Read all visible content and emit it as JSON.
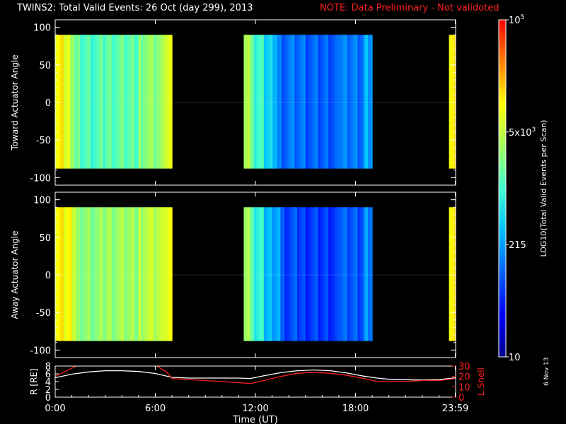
{
  "title": {
    "main": "TWINS2: Total Valid Events: 26 Oct (day 299), 2013",
    "note": "NOTE: Data Preliminary - Not validoted",
    "note_color": "#ff2020"
  },
  "datestamp": "6 Nov 13",
  "colorbar": {
    "ticks": [
      {
        "label": "10"
      },
      {
        "label": "215"
      },
      {
        "label": "5x10^3"
      },
      {
        "label": "10^5"
      }
    ],
    "label": "LOG10(Total Valid Events per Scan)",
    "colormap": [
      "#000090",
      "#0000ff",
      "#0060ff",
      "#00c0ff",
      "#40ffd0",
      "#a0ff60",
      "#ffff00",
      "#ff8000",
      "#ff0000"
    ]
  },
  "chart_data": [
    {
      "type": "heatmap",
      "ylabel": "Toward Actuator Angle",
      "ylim": [
        -110,
        110
      ],
      "yticks": [
        -100,
        -50,
        0,
        50,
        100
      ],
      "angle_range": [
        -88,
        90
      ],
      "x_range_hours": [
        0,
        24
      ],
      "data_segments_hours": [
        [
          0,
          7.0
        ],
        [
          11.3,
          19.0
        ],
        [
          23.6,
          24
        ]
      ],
      "column_profile": [
        {
          "start_h": 0.0,
          "end_h": 0.5,
          "level": 0.78
        },
        {
          "start_h": 0.5,
          "end_h": 0.9,
          "level": 0.7
        },
        {
          "start_h": 0.9,
          "end_h": 1.5,
          "level": 0.58
        },
        {
          "start_h": 1.5,
          "end_h": 3.0,
          "level": 0.52
        },
        {
          "start_h": 3.0,
          "end_h": 5.0,
          "level": 0.54
        },
        {
          "start_h": 5.0,
          "end_h": 6.5,
          "level": 0.6
        },
        {
          "start_h": 6.5,
          "end_h": 7.0,
          "level": 0.7
        },
        {
          "start_h": 11.3,
          "end_h": 11.8,
          "level": 0.62
        },
        {
          "start_h": 11.8,
          "end_h": 12.5,
          "level": 0.5
        },
        {
          "start_h": 12.5,
          "end_h": 13.3,
          "level": 0.4
        },
        {
          "start_h": 13.3,
          "end_h": 15.0,
          "level": 0.27
        },
        {
          "start_h": 15.0,
          "end_h": 17.0,
          "level": 0.25
        },
        {
          "start_h": 17.0,
          "end_h": 18.5,
          "level": 0.28
        },
        {
          "start_h": 18.5,
          "end_h": 19.0,
          "level": 0.34
        },
        {
          "start_h": 23.6,
          "end_h": 24.0,
          "level": 0.78
        }
      ]
    },
    {
      "type": "heatmap",
      "ylabel": "Away Actuator Angle",
      "ylim": [
        -110,
        110
      ],
      "yticks": [
        -100,
        -50,
        0,
        50,
        100
      ],
      "angle_range": [
        -88,
        90
      ],
      "x_range_hours": [
        0,
        24
      ],
      "data_segments_hours": [
        [
          0,
          7.0
        ],
        [
          11.3,
          19.0
        ],
        [
          23.6,
          24
        ]
      ],
      "column_profile": [
        {
          "start_h": 0.0,
          "end_h": 0.5,
          "level": 0.78
        },
        {
          "start_h": 0.5,
          "end_h": 1.0,
          "level": 0.72
        },
        {
          "start_h": 1.0,
          "end_h": 1.5,
          "level": 0.64
        },
        {
          "start_h": 1.5,
          "end_h": 3.0,
          "level": 0.6
        },
        {
          "start_h": 3.0,
          "end_h": 5.0,
          "level": 0.62
        },
        {
          "start_h": 5.0,
          "end_h": 6.5,
          "level": 0.66
        },
        {
          "start_h": 6.5,
          "end_h": 7.0,
          "level": 0.72
        },
        {
          "start_h": 11.3,
          "end_h": 11.8,
          "level": 0.6
        },
        {
          "start_h": 11.8,
          "end_h": 12.5,
          "level": 0.48
        },
        {
          "start_h": 12.5,
          "end_h": 13.5,
          "level": 0.36
        },
        {
          "start_h": 13.5,
          "end_h": 15.0,
          "level": 0.22
        },
        {
          "start_h": 15.0,
          "end_h": 17.0,
          "level": 0.2
        },
        {
          "start_h": 17.0,
          "end_h": 18.5,
          "level": 0.24
        },
        {
          "start_h": 18.5,
          "end_h": 19.0,
          "level": 0.3
        },
        {
          "start_h": 23.6,
          "end_h": 24.0,
          "level": 0.78
        }
      ]
    },
    {
      "type": "line",
      "xlabel": "Time (UT)",
      "xticks": [
        {
          "h": 0,
          "label": "0:00"
        },
        {
          "h": 6,
          "label": "6:00"
        },
        {
          "h": 12,
          "label": "12:00"
        },
        {
          "h": 18,
          "label": "18:00"
        },
        {
          "h": 23.98,
          "label": "23:59"
        }
      ],
      "left_axis": {
        "label": "R [RE]",
        "ylim": [
          0,
          8
        ],
        "yticks": [
          0,
          2,
          4,
          6,
          8
        ],
        "color": "#ffffff"
      },
      "right_axis": {
        "label": "L Shell",
        "ylim": [
          0,
          30
        ],
        "yticks": [
          0,
          10,
          20,
          30
        ],
        "color": "#ff2020"
      },
      "series": [
        {
          "axis": "left",
          "color": "#ffffff",
          "x": [
            0,
            1,
            2,
            3,
            4,
            5,
            6,
            7,
            8,
            9,
            10,
            11,
            11.7,
            12.5,
            13.5,
            14.5,
            15.5,
            16.5,
            17.5,
            18.5,
            19.3,
            20,
            21,
            22,
            23,
            24
          ],
          "y": [
            5.0,
            5.9,
            6.5,
            6.8,
            6.8,
            6.6,
            6.1,
            5.1,
            4.9,
            4.9,
            4.9,
            4.9,
            4.8,
            5.5,
            6.3,
            6.8,
            7.0,
            6.8,
            6.2,
            5.4,
            4.9,
            4.6,
            4.5,
            4.4,
            4.5,
            5.0
          ]
        },
        {
          "axis": "right",
          "color": "#ff2020",
          "x": [
            0,
            0.5,
            1.0,
            1.4,
            6.0,
            6.3,
            6.7,
            7.0,
            8,
            9,
            10,
            11,
            11.7,
            12.5,
            13.5,
            14.5,
            15.5,
            16.5,
            17.5,
            18.5,
            19.3,
            20,
            21,
            22,
            23,
            24
          ],
          "y": [
            20,
            24,
            28,
            31,
            31,
            28,
            24,
            18,
            17,
            16,
            15,
            14,
            13,
            16,
            20,
            23,
            24,
            23,
            21,
            18,
            15,
            15,
            15,
            16,
            16,
            18
          ]
        }
      ]
    }
  ]
}
